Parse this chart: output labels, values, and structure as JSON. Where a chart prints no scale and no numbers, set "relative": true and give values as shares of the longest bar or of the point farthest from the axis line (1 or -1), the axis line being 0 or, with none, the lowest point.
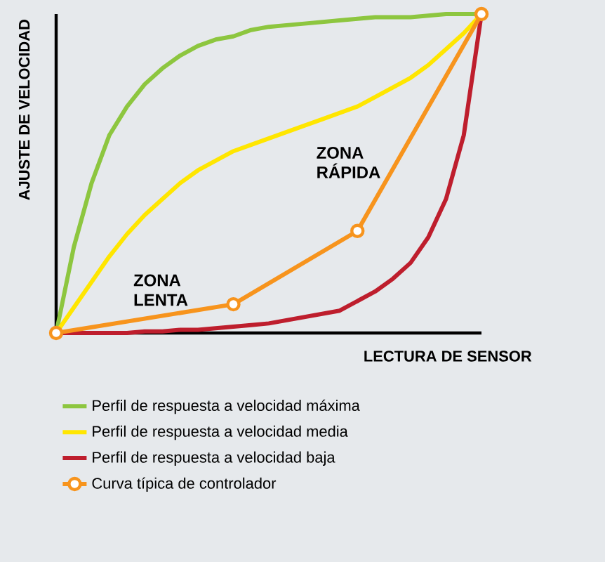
{
  "chart_data": {
    "type": "line",
    "relative": true,
    "xlabel": "LECTURA DE SENSOR",
    "ylabel": "AJUSTE DE VELOCIDAD",
    "annotations": [
      "ZONA LENTA",
      "ZONA RÁPIDA"
    ],
    "categories": [
      null,
      null,
      null,
      null,
      null,
      null,
      null,
      null,
      null,
      null,
      null,
      null,
      null,
      null,
      null,
      null,
      null,
      null,
      null,
      null,
      null,
      null,
      null,
      null,
      null
    ],
    "series": [
      {
        "name": "Perfil de respuesta a velocidad máxima",
        "color": "#8dc63f",
        "values": [
          0,
          0.27,
          0.47,
          0.62,
          0.71,
          0.78,
          0.83,
          0.87,
          0.9,
          0.92,
          0.93,
          0.95,
          0.96,
          0.965,
          0.97,
          0.975,
          0.98,
          0.985,
          0.99,
          0.99,
          0.99,
          0.995,
          1,
          1,
          1
        ]
      },
      {
        "name": "Perfil de respuesta a velocidad media",
        "color": "#ffe600",
        "values": [
          0,
          0.08,
          0.16,
          0.24,
          0.31,
          0.37,
          0.42,
          0.47,
          0.51,
          0.54,
          0.57,
          0.59,
          0.61,
          0.63,
          0.65,
          0.67,
          0.69,
          0.71,
          0.74,
          0.77,
          0.8,
          0.84,
          0.89,
          0.94,
          1
        ]
      },
      {
        "name": "Perfil de respuesta a velocidad baja",
        "color": "#be1e2d",
        "values": [
          0,
          0,
          0,
          0,
          0,
          0.005,
          0.005,
          0.01,
          0.01,
          0.015,
          0.02,
          0.025,
          0.03,
          0.04,
          0.05,
          0.06,
          0.07,
          0.1,
          0.13,
          0.17,
          0.22,
          0.3,
          0.42,
          0.62,
          1
        ]
      },
      {
        "name": "Curva típica de controlador",
        "color": "#f7941d",
        "marker": "circle",
        "values": [
          0,
          null,
          null,
          null,
          null,
          null,
          null,
          null,
          null,
          null,
          0.09,
          null,
          null,
          null,
          null,
          null,
          null,
          0.32,
          null,
          null,
          null,
          null,
          null,
          null,
          1
        ]
      }
    ],
    "legend": "bottom",
    "grid": false
  }
}
